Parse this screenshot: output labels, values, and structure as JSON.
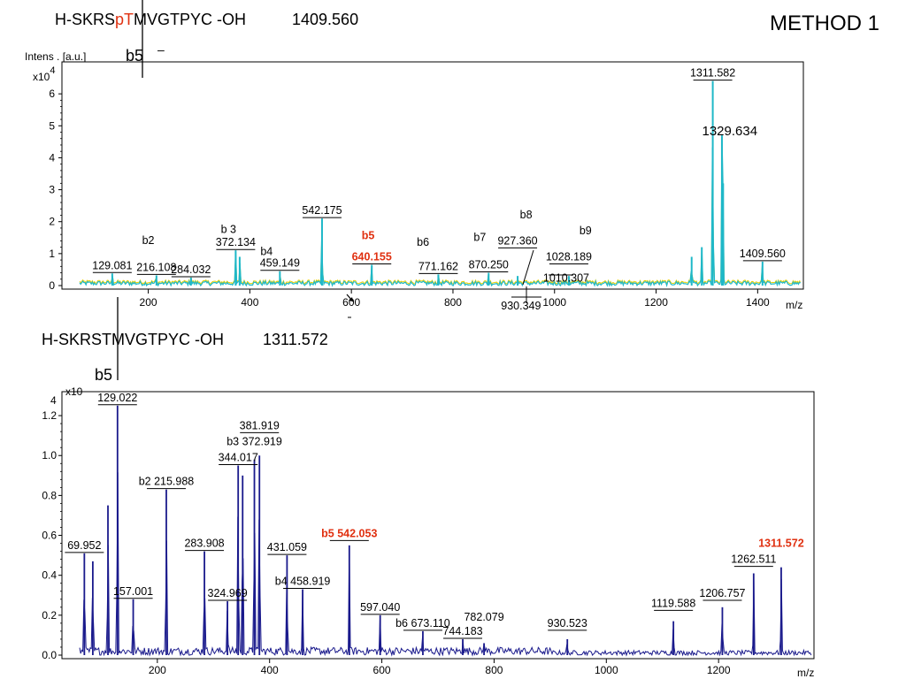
{
  "header": {
    "method": "METHOD 1",
    "top_seq_prefix": "H-SKRS",
    "top_seq_mod": "pT",
    "top_seq_suffix": "MVGTPYC -OH",
    "top_mass": "1409.560",
    "top_b5": "b5",
    "top_dash": "–",
    "bottom_seq": "H-SKRSTMVGTPYC -OH",
    "bottom_mass": "1311.572",
    "bottom_b5": "b5"
  },
  "colors": {
    "spectrum_top": "#1fb8c8",
    "spectrum_top_under": "#e8d000",
    "spectrum_bottom": "#1a1a8c",
    "highlight": "#e03010"
  },
  "chart_data": [
    {
      "type": "line",
      "ylabel": "Intens . [a.u.]",
      "yscale_label": "x10",
      "yscale_exp": "4",
      "xlabel": "m/z",
      "xlim": [
        30,
        1490
      ],
      "ylim": [
        0,
        7
      ],
      "xticks": [
        200,
        400,
        600,
        800,
        1000,
        1200,
        1400
      ],
      "yticks": [
        0,
        1,
        2,
        3,
        4,
        5,
        6
      ],
      "ytick_labels": [
        "0",
        "1",
        "2",
        "3",
        "4",
        "5",
        "6"
      ],
      "peaks": [
        {
          "mz": 129.081,
          "i": 0.38
        },
        {
          "mz": 216.108,
          "i": 0.32
        },
        {
          "mz": 284.032,
          "i": 0.25
        },
        {
          "mz": 372.134,
          "i": 1.1
        },
        {
          "mz": 380.0,
          "i": 0.9
        },
        {
          "mz": 459.149,
          "i": 0.45
        },
        {
          "mz": 542.175,
          "i": 2.1
        },
        {
          "mz": 640.155,
          "i": 0.65
        },
        {
          "mz": 771.162,
          "i": 0.35
        },
        {
          "mz": 870.25,
          "i": 0.4
        },
        {
          "mz": 927.36,
          "i": 0.3
        },
        {
          "mz": 1028.189,
          "i": 0.3
        },
        {
          "mz": 1270.0,
          "i": 0.9
        },
        {
          "mz": 1290.0,
          "i": 1.2
        },
        {
          "mz": 1311.582,
          "i": 6.4
        },
        {
          "mz": 1329.634,
          "i": 4.7
        },
        {
          "mz": 1332.0,
          "i": 3.2
        },
        {
          "mz": 1409.56,
          "i": 0.75
        }
      ],
      "annotations": [
        {
          "text": "129.081",
          "mz": 129.081,
          "i": 0.38,
          "dy": 4,
          "bar": true
        },
        {
          "text": "216.108",
          "mz": 216.108,
          "i": 0.32,
          "dy": 4,
          "bar": true
        },
        {
          "text": "284.032",
          "mz": 284.032,
          "i": 0.25,
          "dy": 4,
          "bar": true
        },
        {
          "text": "372.134",
          "mz": 372.134,
          "i": 1.1,
          "dy": 4,
          "bar": true
        },
        {
          "text": "459.149",
          "mz": 459.149,
          "i": 0.45,
          "dy": 4,
          "bar": true
        },
        {
          "text": "542.175",
          "mz": 542.175,
          "i": 2.1,
          "dy": 4,
          "bar": true
        },
        {
          "text": "640.155",
          "mz": 640.155,
          "i": 0.65,
          "dy": 4,
          "bar": true,
          "red": true
        },
        {
          "text": "771.162",
          "mz": 771.162,
          "i": 0.35,
          "dy": 4,
          "bar": true
        },
        {
          "text": "870.250",
          "mz": 870.25,
          "i": 0.4,
          "dy": 4,
          "bar": true
        },
        {
          "text": "927.360",
          "mz": 927.36,
          "i": 1.15,
          "dy": 4,
          "bar": true
        },
        {
          "text": "1028.189",
          "mz": 1028.189,
          "i": 0.65,
          "dy": 4,
          "bar": true
        },
        {
          "text": "1311.582",
          "mz": 1311.582,
          "i": 6.4,
          "dy": 4,
          "bar": true
        },
        {
          "text": "1409.560",
          "mz": 1409.56,
          "i": 0.75,
          "dy": 4,
          "bar": true
        }
      ],
      "ion_labels": [
        {
          "text": "b2",
          "mz": 200,
          "i": 1.3
        },
        {
          "text": "b 3",
          "mz": 358,
          "i": 1.65
        },
        {
          "text": "b4",
          "mz": 433,
          "i": 0.95
        },
        {
          "text": "b5",
          "mz": 633,
          "i": 1.45,
          "red": true
        },
        {
          "text": "b6",
          "mz": 741,
          "i": 1.25
        },
        {
          "text": "b7",
          "mz": 853,
          "i": 1.4
        },
        {
          "text": "b8",
          "mz": 944,
          "i": 2.1
        },
        {
          "text": "b9",
          "mz": 1061,
          "i": 1.6
        }
      ],
      "extra_labels": [
        {
          "text": "1329.634",
          "mz": 1345,
          "i": 4.7
        },
        {
          "text": "1010.307",
          "mz": 1023,
          "i": 0.12
        },
        {
          "text": "930.349",
          "mz": 934,
          "i": -0.75
        }
      ]
    },
    {
      "type": "line",
      "yscale_label": "x10",
      "yscale_exp": "4",
      "xlabel": "m/z",
      "xlim": [
        30,
        1370
      ],
      "ylim": [
        0,
        1.32
      ],
      "xticks": [
        200,
        400,
        600,
        800,
        1000,
        1200
      ],
      "yticks": [
        0,
        0.2,
        0.4,
        0.6,
        0.8,
        1.0,
        1.2
      ],
      "ytick_labels": [
        "0.0",
        "0.2",
        "0.4",
        "0.6",
        "0.8",
        "1.0",
        "1.2"
      ],
      "peaks": [
        {
          "mz": 69.952,
          "i": 0.51
        },
        {
          "mz": 85.0,
          "i": 0.47
        },
        {
          "mz": 112.0,
          "i": 0.75
        },
        {
          "mz": 129.022,
          "i": 1.25
        },
        {
          "mz": 157.001,
          "i": 0.28
        },
        {
          "mz": 215.988,
          "i": 0.83
        },
        {
          "mz": 283.908,
          "i": 0.52
        },
        {
          "mz": 324.969,
          "i": 0.27
        },
        {
          "mz": 344.017,
          "i": 0.95
        },
        {
          "mz": 352.0,
          "i": 0.9
        },
        {
          "mz": 372.919,
          "i": 0.98
        },
        {
          "mz": 381.919,
          "i": 1.0
        },
        {
          "mz": 431.059,
          "i": 0.5
        },
        {
          "mz": 458.919,
          "i": 0.33
        },
        {
          "mz": 542.053,
          "i": 0.55
        },
        {
          "mz": 597.04,
          "i": 0.2
        },
        {
          "mz": 673.11,
          "i": 0.12
        },
        {
          "mz": 744.183,
          "i": 0.08
        },
        {
          "mz": 782.079,
          "i": 0.06
        },
        {
          "mz": 930.523,
          "i": 0.08
        },
        {
          "mz": 1119.588,
          "i": 0.17
        },
        {
          "mz": 1206.757,
          "i": 0.24
        },
        {
          "mz": 1262.511,
          "i": 0.41
        },
        {
          "mz": 1311.572,
          "i": 0.44
        }
      ],
      "annotations": [
        {
          "text": "129.022",
          "mz": 129.022,
          "i": 1.25,
          "dy": 4,
          "bar": true
        },
        {
          "text": "69.952",
          "mz": 69.952,
          "i": 0.51,
          "dy": 4,
          "bar": true
        },
        {
          "text": "157.001",
          "mz": 157.001,
          "i": 0.28,
          "dy": 4,
          "bar": true
        },
        {
          "text": "215.988",
          "mz": 215.988,
          "i": 0.83,
          "dy": 4,
          "bar": true,
          "prefix": "b2 "
        },
        {
          "text": "283.908",
          "mz": 283.908,
          "i": 0.52,
          "dy": 4,
          "bar": true
        },
        {
          "text": "324.969",
          "mz": 324.969,
          "i": 0.27,
          "dy": 4,
          "bar": true
        },
        {
          "text": "344.017",
          "mz": 344.017,
          "i": 0.95,
          "dy": 4,
          "bar": true
        },
        {
          "text": "372.919",
          "mz": 372.919,
          "i": 1.03,
          "dy": 4,
          "bar": false,
          "prefix": "b3 "
        },
        {
          "text": "381.919",
          "mz": 381.919,
          "i": 1.11,
          "dy": 4,
          "bar": true
        },
        {
          "text": "431.059",
          "mz": 431.059,
          "i": 0.5,
          "dy": 4,
          "bar": true
        },
        {
          "text": "458.919",
          "mz": 458.919,
          "i": 0.33,
          "dy": 4,
          "bar": true,
          "prefix": "b4 "
        },
        {
          "text": "542.053",
          "mz": 542.053,
          "i": 0.57,
          "dy": 4,
          "bar": true,
          "red": true,
          "prefix": "b5  "
        },
        {
          "text": "597.040",
          "mz": 597.04,
          "i": 0.2,
          "dy": 4,
          "bar": true
        },
        {
          "text": "673.110",
          "mz": 673.11,
          "i": 0.12,
          "dy": 4,
          "bar": true,
          "prefix": "b6 "
        },
        {
          "text": "744.183",
          "mz": 744.183,
          "i": 0.08,
          "dy": 4,
          "bar": true
        },
        {
          "text": "782.079",
          "mz": 782.079,
          "i": 0.15,
          "dy": 4,
          "bar": false
        },
        {
          "text": "930.523",
          "mz": 930.523,
          "i": 0.12,
          "dy": 4,
          "bar": true
        },
        {
          "text": "1119.588",
          "mz": 1119.588,
          "i": 0.22,
          "dy": 4,
          "bar": true
        },
        {
          "text": "1206.757",
          "mz": 1206.757,
          "i": 0.27,
          "dy": 4,
          "bar": true
        },
        {
          "text": "1262.511",
          "mz": 1262.511,
          "i": 0.44,
          "dy": 4,
          "bar": true
        },
        {
          "text": "1311.572",
          "mz": 1311.572,
          "i": 0.52,
          "dy": 4,
          "bar": false,
          "red": true,
          "bold": true
        }
      ],
      "ion_labels": [],
      "extra_labels": []
    }
  ]
}
